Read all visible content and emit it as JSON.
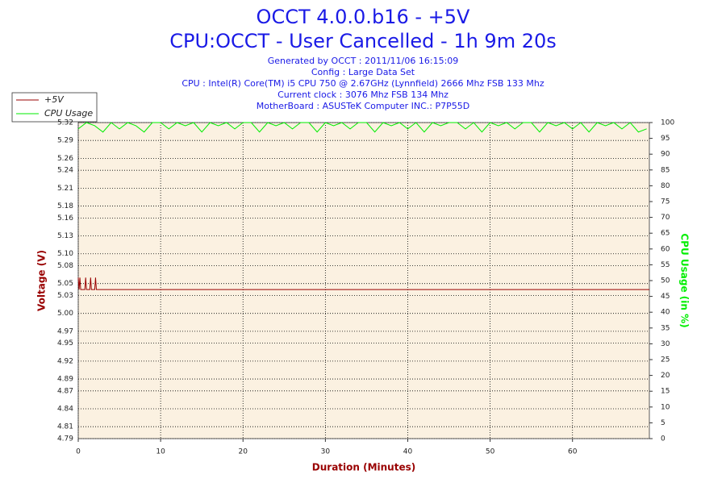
{
  "chart_data": {
    "type": "line",
    "title": "OCCT 4.0.0.b16 - +5V",
    "subtitle": "CPU:OCCT - User Cancelled - 1h 9m 20s",
    "info": [
      "Generated by OCCT : 2011/11/06 16:15:09",
      "Config : Large Data Set",
      "CPU : Intel(R) Core(TM) i5 CPU 750 @ 2.67GHz (Lynnfield) 2666 Mhz FSB 133 Mhz",
      "Current clock : 3076 Mhz FSB 134 Mhz",
      "MotherBoard : ASUSTeK Computer INC.: P7P55D"
    ],
    "x_label": "Duration (Minutes)",
    "y_label": "Voltage (V)",
    "y2_label": "CPU Usage (in %)",
    "xlim": [
      0,
      69.33
    ],
    "xticks": [
      0,
      10,
      20,
      30,
      40,
      50,
      60
    ],
    "ylim": [
      4.79,
      5.32
    ],
    "yticks": [
      4.79,
      4.81,
      4.84,
      4.87,
      4.89,
      4.92,
      4.95,
      4.97,
      {
        "value": 5,
        "label": "5.00"
      },
      5.03,
      5.05,
      5.08,
      {
        "value": 5.1,
        "label": "5.10"
      },
      5.13,
      5.16,
      5.18,
      5.21,
      5.24,
      5.26,
      5.29,
      5.32
    ],
    "y2lim": [
      0,
      100
    ],
    "y2ticks": [
      0,
      5,
      10,
      15,
      20,
      25,
      30,
      35,
      40,
      45,
      50,
      55,
      60,
      65,
      70,
      75,
      80,
      85,
      90,
      95,
      100
    ],
    "grid": true,
    "legend": "top-left",
    "series": [
      {
        "name": "+5V",
        "color": "#990000",
        "x": [
          0,
          0.1,
          0.2,
          0.3,
          0.8,
          0.9,
          1.0,
          1.4,
          1.5,
          1.6,
          2.0,
          2.1,
          2.2,
          69.33
        ],
        "values": [
          5.06,
          5.04,
          5.06,
          5.04,
          5.04,
          5.06,
          5.04,
          5.04,
          5.06,
          5.04,
          5.04,
          5.06,
          5.04,
          5.04
        ]
      },
      {
        "name": "CPU Usage",
        "color": "#00ee00",
        "axis": "y2",
        "x": [
          0,
          1,
          2,
          3,
          4,
          5,
          6,
          7,
          8,
          9,
          10,
          11,
          12,
          13,
          14,
          15,
          16,
          17,
          18,
          19,
          20,
          21,
          22,
          23,
          24,
          25,
          26,
          27,
          28,
          29,
          30,
          31,
          32,
          33,
          34,
          35,
          36,
          37,
          38,
          39,
          40,
          41,
          42,
          43,
          44,
          45,
          46,
          47,
          48,
          49,
          50,
          51,
          52,
          53,
          54,
          55,
          56,
          57,
          58,
          59,
          60,
          61,
          62,
          63,
          64,
          65,
          66,
          67,
          68,
          69
        ],
        "values": [
          98,
          100,
          99,
          97,
          100,
          98,
          100,
          99,
          97,
          100,
          100,
          98,
          100,
          99,
          100,
          97,
          100,
          99,
          100,
          98,
          100,
          100,
          97,
          100,
          99,
          100,
          98,
          100,
          100,
          97,
          100,
          99,
          100,
          98,
          100,
          100,
          97,
          100,
          99,
          100,
          98,
          100,
          97,
          100,
          99,
          100,
          100,
          98,
          100,
          97,
          100,
          99,
          100,
          98,
          100,
          100,
          97,
          100,
          99,
          100,
          98,
          100,
          97,
          100,
          99,
          100,
          98,
          100,
          97,
          98
        ]
      }
    ]
  }
}
